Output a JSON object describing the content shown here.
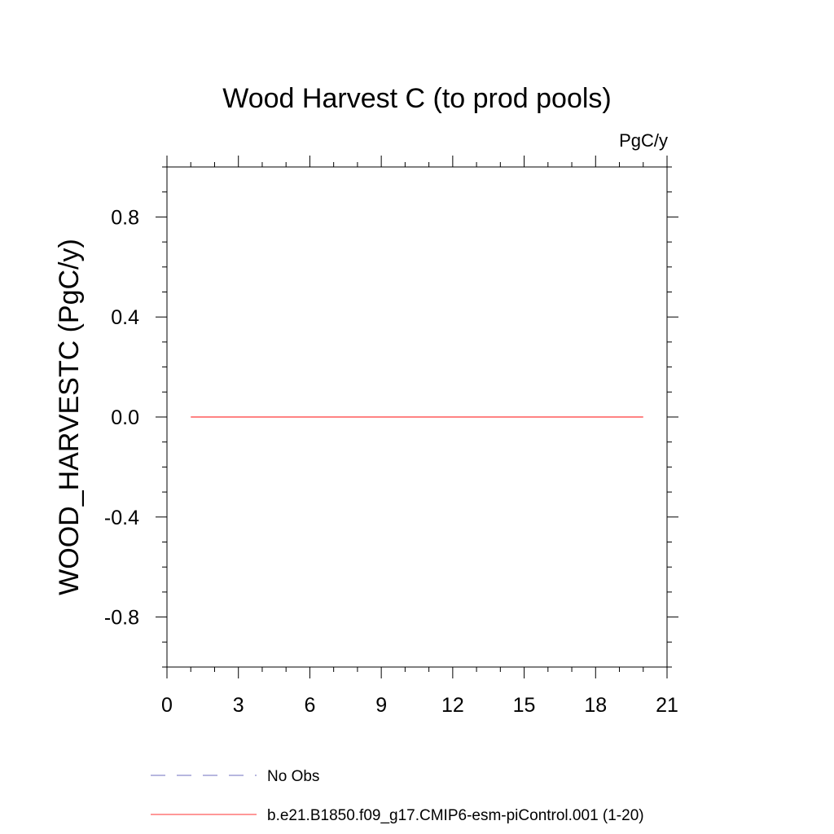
{
  "chart_data": {
    "type": "line",
    "title": "Wood Harvest C (to prod pools)",
    "units_label": "PgC/y",
    "xlabel": "",
    "ylabel": "WOOD_HARVESTC  (PgC/y)",
    "xlim": [
      0,
      21
    ],
    "ylim": [
      -1,
      1
    ],
    "x_ticks": [
      0,
      3,
      6,
      9,
      12,
      15,
      18,
      21
    ],
    "x_tick_labels": [
      "0",
      "3",
      "6",
      "9",
      "12",
      "15",
      "18",
      "21"
    ],
    "y_ticks": [
      -0.8,
      -0.4,
      0.0,
      0.4,
      0.8
    ],
    "y_tick_labels": [
      "-0.8",
      "-0.4",
      "0.0",
      "0.4",
      "0.8"
    ],
    "x_minor_step": 1,
    "y_minor_step": 0.1,
    "grid": false,
    "legend_position": "bottom",
    "series": [
      {
        "name": "b.e21.B1850.f09_g17.CMIP6-esm-piControl.001 (1-20)",
        "color": "#ff5a5a",
        "style": "solid",
        "x": [
          1,
          2,
          3,
          4,
          5,
          6,
          7,
          8,
          9,
          10,
          11,
          12,
          13,
          14,
          15,
          16,
          17,
          18,
          19,
          20
        ],
        "y": [
          0,
          0,
          0,
          0,
          0,
          0,
          0,
          0,
          0,
          0,
          0,
          0,
          0,
          0,
          0,
          0,
          0,
          0,
          0,
          0
        ]
      }
    ],
    "legend": [
      {
        "label": "No Obs",
        "color": "#8c8ccc",
        "style": "dashed"
      },
      {
        "label": "b.e21.B1850.f09_g17.CMIP6-esm-piControl.001 (1-20)",
        "color": "#ff5a5a",
        "style": "solid"
      }
    ]
  }
}
